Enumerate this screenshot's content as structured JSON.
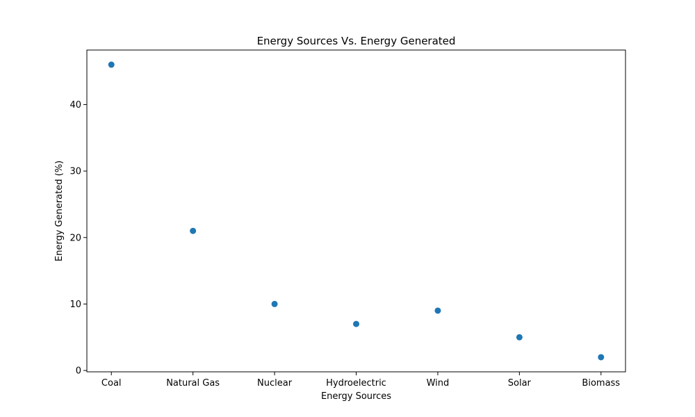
{
  "chart_data": {
    "type": "scatter",
    "title": "Energy Sources Vs. Energy Generated",
    "xlabel": "Energy Sources",
    "ylabel": "Energy Generated (%)",
    "categories": [
      "Coal",
      "Natural Gas",
      "Nuclear",
      "Hydroelectric",
      "Wind",
      "Solar",
      "Biomass"
    ],
    "values": [
      46,
      21,
      10,
      7,
      9,
      5,
      2
    ],
    "ylim": [
      -0.2,
      48.2
    ],
    "yticks": [
      0,
      10,
      20,
      30,
      40
    ],
    "grid": false,
    "legend": "none",
    "colors": {
      "marker": "#1f77b4",
      "axis": "#000000",
      "background": "#ffffff"
    }
  }
}
